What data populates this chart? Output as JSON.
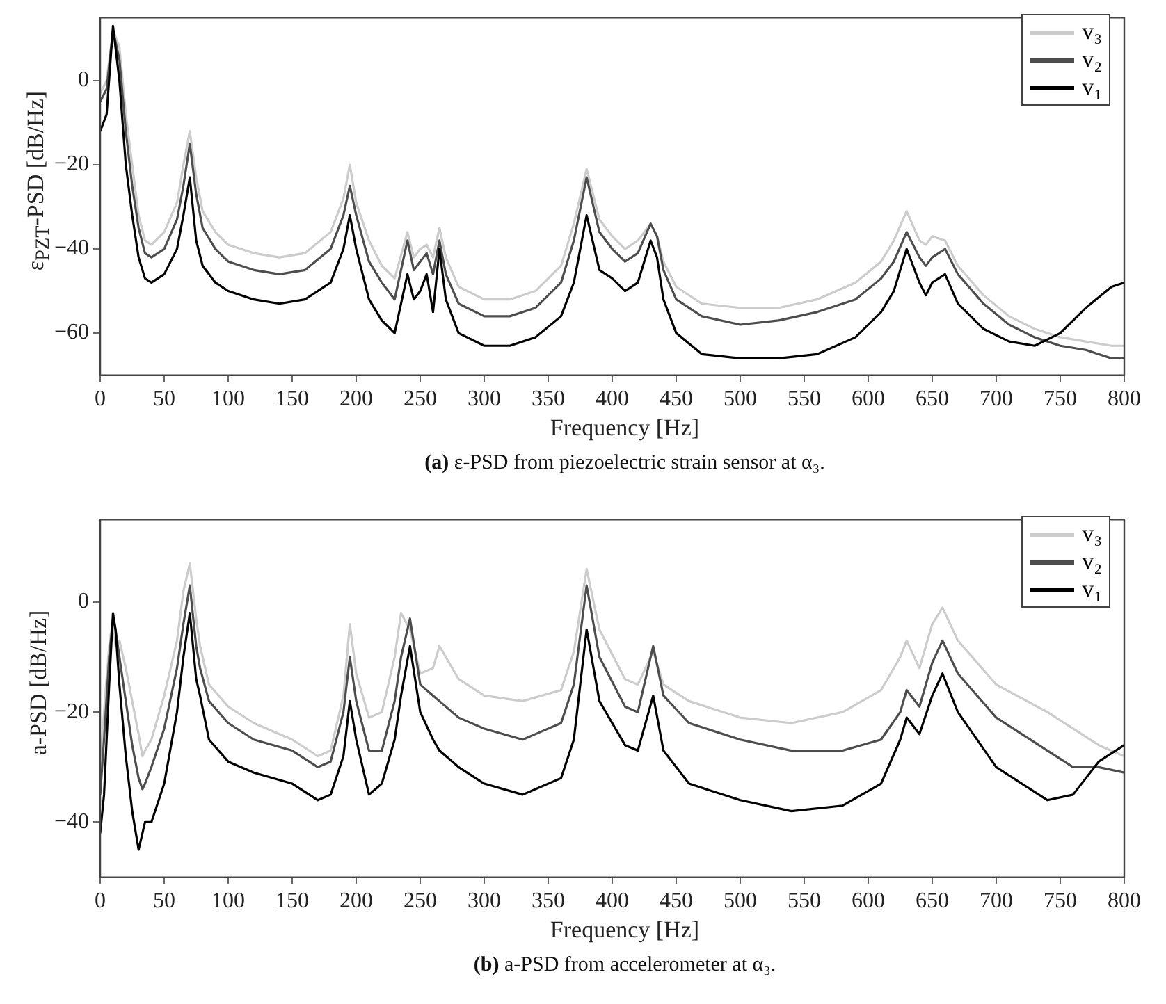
{
  "chart_data": [
    {
      "type": "line",
      "title": "(a) ε-PSD from piezoelectric strain sensor at α₃.",
      "xlabel": "Frequency [Hz]",
      "ylabel": "ε$_{PZT}$-PSD [dB/Hz]",
      "x": [
        0,
        5,
        10,
        15,
        20,
        25,
        30,
        35,
        40,
        50,
        60,
        65,
        70,
        75,
        80,
        90,
        100,
        120,
        140,
        160,
        180,
        190,
        195,
        200,
        210,
        220,
        230,
        240,
        245,
        250,
        255,
        260,
        265,
        270,
        280,
        300,
        320,
        340,
        360,
        370,
        380,
        390,
        400,
        410,
        420,
        430,
        435,
        440,
        450,
        470,
        500,
        530,
        560,
        590,
        610,
        620,
        630,
        640,
        645,
        650,
        660,
        670,
        690,
        710,
        730,
        750,
        770,
        790,
        800
      ],
      "xlim": [
        0,
        800
      ],
      "xticks": [
        0,
        50,
        100,
        150,
        200,
        250,
        300,
        350,
        400,
        450,
        500,
        550,
        600,
        650,
        700,
        750,
        800
      ],
      "ylim": [
        -70,
        15
      ],
      "yticks": [
        -60,
        -40,
        -20,
        0
      ],
      "grid": false,
      "legend": "top right",
      "marker": "none",
      "line_style": "solid",
      "series": [
        {
          "name": "v₃",
          "color": "#cccccc",
          "values": [
            -3,
            0,
            12,
            8,
            -8,
            -20,
            -32,
            -38,
            -39,
            -36,
            -29,
            -20,
            -12,
            -23,
            -31,
            -36,
            -39,
            -41,
            -42,
            -41,
            -36,
            -28,
            -20,
            -29,
            -38,
            -44,
            -47,
            -36,
            -42,
            -40,
            -39,
            -42,
            -35,
            -42,
            -49,
            -52,
            -52,
            -50,
            -44,
            -34,
            -21,
            -33,
            -37,
            -40,
            -38,
            -34,
            -37,
            -43,
            -49,
            -53,
            -54,
            -54,
            -52,
            -48,
            -43,
            -38,
            -31,
            -38,
            -39,
            -37,
            -38,
            -44,
            -51,
            -56,
            -59,
            -61,
            -62,
            -63,
            -63
          ]
        },
        {
          "name": "v₂",
          "color": "#4d4d4d",
          "values": [
            -5,
            -2,
            12,
            5,
            -12,
            -25,
            -35,
            -41,
            -42,
            -40,
            -33,
            -25,
            -15,
            -27,
            -35,
            -40,
            -43,
            -45,
            -46,
            -45,
            -40,
            -32,
            -25,
            -32,
            -43,
            -48,
            -52,
            -38,
            -45,
            -43,
            -41,
            -46,
            -38,
            -46,
            -53,
            -56,
            -56,
            -54,
            -48,
            -38,
            -23,
            -36,
            -40,
            -43,
            -41,
            -34,
            -37,
            -45,
            -52,
            -56,
            -58,
            -57,
            -55,
            -52,
            -47,
            -43,
            -36,
            -42,
            -44,
            -42,
            -40,
            -46,
            -53,
            -58,
            -61,
            -63,
            -64,
            -66,
            -66
          ]
        },
        {
          "name": "v₁",
          "color": "#000000",
          "values": [
            -12,
            -8,
            13,
            0,
            -20,
            -32,
            -42,
            -47,
            -48,
            -46,
            -40,
            -32,
            -23,
            -38,
            -44,
            -48,
            -50,
            -52,
            -53,
            -52,
            -48,
            -40,
            -32,
            -40,
            -52,
            -57,
            -60,
            -46,
            -52,
            -50,
            -46,
            -55,
            -40,
            -52,
            -60,
            -63,
            -63,
            -61,
            -56,
            -48,
            -32,
            -45,
            -47,
            -50,
            -48,
            -38,
            -42,
            -52,
            -60,
            -65,
            -66,
            -66,
            -65,
            -61,
            -55,
            -50,
            -40,
            -48,
            -51,
            -48,
            -46,
            -53,
            -59,
            -62,
            -63,
            -60,
            -54,
            -49,
            -48
          ]
        }
      ]
    },
    {
      "type": "line",
      "title": "(b) a-PSD from accelerometer at α₃.",
      "xlabel": "Frequency [Hz]",
      "ylabel": "a-PSD [dB/Hz]",
      "x": [
        0,
        3,
        7,
        10,
        12,
        15,
        20,
        25,
        30,
        33,
        35,
        40,
        50,
        60,
        65,
        70,
        75,
        78,
        85,
        100,
        120,
        150,
        170,
        180,
        190,
        195,
        200,
        210,
        220,
        230,
        235,
        242,
        250,
        260,
        265,
        280,
        300,
        330,
        360,
        370,
        380,
        390,
        410,
        420,
        432,
        440,
        460,
        500,
        540,
        580,
        610,
        625,
        630,
        640,
        650,
        658,
        670,
        700,
        740,
        760,
        780,
        800
      ],
      "xlim": [
        0,
        800
      ],
      "xticks": [
        0,
        50,
        100,
        150,
        200,
        250,
        300,
        350,
        400,
        450,
        500,
        550,
        600,
        650,
        700,
        750,
        800
      ],
      "ylim": [
        -50,
        15
      ],
      "yticks": [
        -40,
        -20,
        0
      ],
      "grid": false,
      "legend": "top right",
      "marker": "none",
      "line_style": "solid",
      "series": [
        {
          "name": "v₃",
          "color": "#cccccc",
          "values": [
            -30,
            -20,
            -8,
            -3,
            -8,
            -7,
            -12,
            -18,
            -24,
            -28,
            -27,
            -25,
            -17,
            -7,
            2,
            7,
            -3,
            -8,
            -15,
            -19,
            -22,
            -25,
            -28,
            -27,
            -17,
            -4,
            -13,
            -21,
            -20,
            -10,
            -2,
            -5,
            -13,
            -12,
            -8,
            -14,
            -17,
            -18,
            -16,
            -9,
            6,
            -5,
            -14,
            -15,
            -9,
            -15,
            -18,
            -21,
            -22,
            -20,
            -16,
            -10,
            -7,
            -12,
            -4,
            -1,
            -7,
            -15,
            -20,
            -23,
            -26,
            -28
          ]
        },
        {
          "name": "v₂",
          "color": "#4d4d4d",
          "values": [
            -35,
            -25,
            -10,
            -3,
            -5,
            -10,
            -18,
            -26,
            -32,
            -34,
            -33,
            -30,
            -23,
            -12,
            -4,
            3,
            -8,
            -12,
            -18,
            -22,
            -25,
            -27,
            -30,
            -29,
            -20,
            -10,
            -18,
            -27,
            -27,
            -18,
            -10,
            -3,
            -15,
            -17,
            -18,
            -21,
            -23,
            -25,
            -22,
            -15,
            3,
            -10,
            -19,
            -20,
            -8,
            -17,
            -22,
            -25,
            -27,
            -27,
            -25,
            -20,
            -16,
            -19,
            -11,
            -7,
            -13,
            -21,
            -27,
            -30,
            -30,
            -31
          ]
        },
        {
          "name": "v₁",
          "color": "#000000",
          "values": [
            -42,
            -35,
            -15,
            -2,
            -5,
            -15,
            -28,
            -38,
            -45,
            -42,
            -40,
            -40,
            -33,
            -20,
            -10,
            -2,
            -14,
            -17,
            -25,
            -29,
            -31,
            -33,
            -36,
            -35,
            -28,
            -18,
            -25,
            -35,
            -33,
            -25,
            -17,
            -8,
            -20,
            -25,
            -27,
            -30,
            -33,
            -35,
            -32,
            -25,
            -5,
            -18,
            -26,
            -27,
            -17,
            -27,
            -33,
            -36,
            -38,
            -37,
            -33,
            -25,
            -21,
            -24,
            -17,
            -13,
            -20,
            -30,
            -36,
            -35,
            -29,
            -26
          ]
        }
      ]
    }
  ]
}
